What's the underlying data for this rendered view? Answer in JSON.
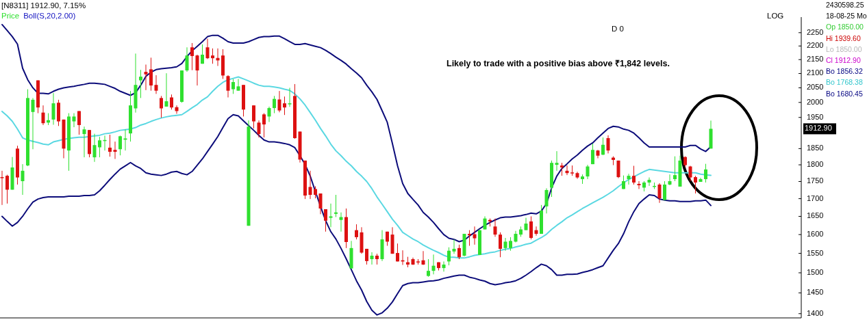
{
  "chart_data": {
    "type": "candlestick",
    "title": "[N8311] 1912.90, 7.15%",
    "subtitle": "Boll(S,20,2.00)",
    "log": true,
    "ylim": [
      1390,
      2310
    ],
    "yticks": [
      1400,
      1450,
      1500,
      1550,
      1600,
      1650,
      1700,
      1750,
      1800,
      1850,
      1950,
      2000,
      2050,
      2100,
      2150,
      2200,
      2250
    ],
    "categories": [
      null,
      null,
      null,
      null,
      null,
      null,
      null,
      null,
      null,
      null,
      null,
      null,
      null,
      null,
      null,
      null,
      null,
      null,
      null,
      null,
      null,
      null,
      null,
      null,
      null,
      null,
      null,
      null,
      null,
      null,
      null,
      null,
      null,
      null,
      null,
      null,
      null,
      null,
      null,
      null,
      null,
      null,
      null,
      null,
      null,
      null,
      null,
      null,
      null,
      null,
      null,
      null,
      null,
      null,
      null,
      null,
      null,
      null,
      null,
      null,
      null,
      null,
      null,
      null,
      null,
      null,
      null,
      null,
      null,
      null,
      null,
      null,
      null,
      null,
      null,
      null,
      null,
      null,
      null,
      null,
      null,
      null,
      null,
      null,
      null,
      null,
      null,
      null,
      null,
      null,
      null,
      null,
      null,
      null,
      null,
      null,
      null,
      null,
      null,
      null,
      null,
      null,
      null,
      null,
      null,
      null,
      null,
      null,
      null,
      null,
      null,
      null,
      null,
      null,
      null,
      null,
      null,
      null,
      null,
      null,
      null,
      null,
      null,
      null,
      null,
      null,
      null,
      null,
      null,
      null,
      null,
      null,
      null,
      null,
      null,
      null,
      null,
      null,
      null
    ],
    "series": [
      {
        "type": "line",
        "color": "#0c0c7a",
        "values": [
          2281,
          2258,
          2235,
          2207,
          2119,
          2078,
          2050,
          2031,
          2031,
          2029,
          2038,
          2045,
          2050,
          2053,
          2055,
          2059,
          2062,
          2066,
          2066,
          2064,
          2062,
          2055,
          2048,
          2038,
          2031,
          2024,
          2033,
          2059,
          2090,
          2105,
          2114,
          2117,
          2119,
          2121,
          2124,
          2136,
          2161,
          2182,
          2199,
          2216,
          2235,
          2240,
          2240,
          2229,
          2216,
          2211,
          2211,
          2211,
          2216,
          2224,
          2232,
          2235,
          2235,
          2237,
          2237,
          2227,
          2216,
          2206,
          2206,
          2209,
          2204,
          2199,
          2194,
          2184,
          2172,
          2159,
          2147,
          2134,
          2117,
          2102,
          2085,
          2059,
          2036,
          2010,
          1972,
          1934,
          1866,
          1797,
          1744,
          1715,
          1698,
          1682,
          1661,
          1648,
          1633,
          1616,
          1600,
          1590,
          1587,
          1581,
          1585,
          1596,
          1606,
          1616,
          1625,
          1633,
          1640,
          1646,
          1648,
          1648,
          1650,
          1652,
          1655,
          1659,
          1657,
          1665,
          1686,
          1731,
          1766,
          1789,
          1803,
          1818,
          1830,
          1845,
          1858,
          1868,
          1884,
          1899,
          1914,
          1921,
          1919,
          1912,
          1908,
          1899,
          1884,
          1868,
          1855,
          1855,
          1855,
          1855,
          1855,
          1855,
          1855,
          1855,
          1860,
          1860,
          1849,
          1841,
          1856.32
        ]
      },
      {
        "type": "line",
        "color": "#5ad8e2",
        "values": [
          1970,
          1955,
          1937,
          1912,
          1884,
          1877,
          1873,
          1869,
          1864,
          1862,
          1871,
          1875,
          1879,
          1882,
          1884,
          1886,
          1886,
          1888,
          1890,
          1892,
          1897,
          1899,
          1903,
          1908,
          1910,
          1912,
          1917,
          1925,
          1930,
          1937,
          1943,
          1948,
          1952,
          1955,
          1957,
          1959,
          1970,
          1982,
          1993,
          2008,
          2019,
          2038,
          2055,
          2069,
          2078,
          2083,
          2088,
          2081,
          2074,
          2066,
          2059,
          2055,
          2055,
          2053,
          2050,
          2045,
          2041,
          2029,
          2012,
          1991,
          1966,
          1941,
          1914,
          1890,
          1864,
          1843,
          1828,
          1811,
          1797,
          1780,
          1766,
          1750,
          1729,
          1705,
          1684,
          1663,
          1642,
          1625,
          1606,
          1597,
          1588,
          1581,
          1572,
          1565,
          1558,
          1552,
          1545,
          1540,
          1540,
          1538,
          1538,
          1541,
          1545,
          1547,
          1549,
          1552,
          1554,
          1558,
          1561,
          1563,
          1567,
          1570,
          1574,
          1577,
          1585,
          1592,
          1601,
          1614,
          1625,
          1635,
          1646,
          1654,
          1663,
          1672,
          1680,
          1688,
          1696,
          1704,
          1713,
          1723,
          1735,
          1746,
          1756,
          1764,
          1772,
          1780,
          1786,
          1784,
          1782,
          1780,
          1778,
          1776,
          1776,
          1776,
          1776,
          1776,
          1772,
          1770,
          1768.38
        ]
      },
      {
        "type": "line",
        "color": "#0c0c7a",
        "values": [
          1650,
          1636,
          1623,
          1633,
          1650,
          1671,
          1690,
          1699,
          1703,
          1705,
          1705,
          1705,
          1705,
          1707,
          1707,
          1707,
          1709,
          1709,
          1711,
          1723,
          1739,
          1756,
          1772,
          1787,
          1797,
          1807,
          1797,
          1789,
          1776,
          1772,
          1770,
          1768,
          1772,
          1778,
          1780,
          1774,
          1770,
          1780,
          1799,
          1818,
          1841,
          1864,
          1888,
          1917,
          1946,
          1959,
          1955,
          1939,
          1923,
          1908,
          1892,
          1877,
          1871,
          1871,
          1869,
          1866,
          1862,
          1853,
          1828,
          1801,
          1766,
          1721,
          1678,
          1638,
          1608,
          1588,
          1563,
          1536,
          1508,
          1480,
          1457,
          1429,
          1408,
          1397,
          1402,
          1413,
          1428,
          1448,
          1468,
          1473,
          1475,
          1475,
          1477,
          1479,
          1480,
          1482,
          1486,
          1489,
          1492,
          1494,
          1494,
          1489,
          1486,
          1482,
          1479,
          1473,
          1470,
          1472,
          1475,
          1477,
          1480,
          1486,
          1494,
          1503,
          1513,
          1522,
          1518,
          1508,
          1494,
          1494,
          1496,
          1496,
          1497,
          1501,
          1504,
          1508,
          1513,
          1518,
          1538,
          1558,
          1576,
          1602,
          1635,
          1663,
          1686,
          1699,
          1711,
          1709,
          1699,
          1696,
          1694,
          1694,
          1692,
          1692,
          1692,
          1694,
          1694,
          1696,
          1680.45
        ]
      },
      {
        "name": "Price",
        "color": "#2fe02f",
        "colors": [
          "#dd1111",
          "#dd1111",
          "#2fe02f",
          "#dd1111",
          "#2fe02f",
          "#2fe02f",
          "#2fe02f",
          "#dd1111",
          "#dd1111",
          "#2fe02f",
          "#2fe02f",
          "#dd1111",
          "#dd1111",
          "#2fe02f",
          "#2fe02f",
          "#dd1111",
          "#2fe02f",
          "#dd1111",
          "#2fe02f",
          "#2fe02f",
          "#2fe02f",
          "#dd1111",
          "#dd1111",
          "#2fe02f",
          "#2fe02f",
          "#2fe02f",
          "#2fe02f",
          "#2fe02f",
          "#dd1111",
          "#dd1111",
          "#dd1111",
          "#dd1111",
          "#2fe02f",
          "#dd1111",
          "#dd1111",
          "#2fe02f",
          "#2fe02f",
          "#dd1111",
          "#dd1111",
          "#2fe02f",
          "#dd1111",
          "#dd1111",
          "#dd1111",
          "#dd1111",
          "#dd1111",
          "#2fe02f",
          "#2fe02f",
          "#dd1111",
          "#2fe02f",
          "#dd1111",
          "#dd1111",
          "#dd1111",
          "#2fe02f",
          "#2fe02f",
          "#dd1111",
          "#dd1111",
          "#2fe02f",
          "#dd1111",
          "#dd1111",
          "#dd1111",
          "#dd1111",
          "#dd1111",
          "#dd1111",
          "#dd1111",
          "#2fe02f",
          "#2fe02f",
          "#2fe02f",
          "#dd1111",
          "#2fe02f",
          "#dd1111",
          "#dd1111",
          "#dd1111",
          "#2fe02f",
          "#dd1111",
          "#2fe02f",
          "#dd1111",
          "#dd1111",
          "#dd1111",
          "#dd1111",
          "#dd1111",
          "#dd1111",
          "#dd1111",
          "#dd1111",
          "#2fe02f",
          "#2fe02f",
          "#dd1111",
          "#2fe02f",
          "#2fe02f",
          "#2fe02f",
          "#dd1111",
          "#2fe02f",
          "#dd1111",
          "#dd1111",
          "#2fe02f",
          "#2fe02f",
          "#dd1111",
          "#dd1111",
          "#dd1111",
          "#2fe02f",
          "#2fe02f",
          "#2fe02f",
          "#2fe02f",
          "#2fe02f",
          "#dd1111",
          "#dd1111",
          "#2fe02f",
          "#2fe02f",
          "#2fe02f",
          "#2fe02f",
          "#dd1111",
          "#dd1111",
          "#dd1111",
          "#dd1111",
          "#2fe02f",
          "#2fe02f",
          "#2fe02f",
          "#dd1111",
          "#2fe02f",
          "#dd1111",
          "#dd1111",
          "#dd1111",
          "#2fe02f",
          "#2fe02f",
          "#dd1111",
          "#dd1111",
          "#2fe02f",
          "#2fe02f",
          "#2fe02f",
          "#dd1111",
          "#2fe02f",
          "#2fe02f",
          "#2fe02f",
          "#2fe02f",
          "#dd1111",
          "#dd1111",
          "#dd1111",
          "#2fe02f",
          "#2fe02f",
          "#2fe02f"
        ],
        "ohlc": [
          [
            1763,
            1782,
            1682,
            1762
          ],
          [
            1767,
            1770,
            1686,
            1726
          ],
          [
            1726,
            1824,
            1726,
            1792
          ],
          [
            1850,
            1859,
            1741,
            1762
          ],
          [
            1751,
            1802,
            1711,
            1782
          ],
          [
            1798,
            2045,
            1796,
            2015
          ],
          [
            1968,
            2015,
            1848,
            2009
          ],
          [
            2076,
            2076,
            1964,
            1983
          ],
          [
            1966,
            1990,
            1925,
            1931
          ],
          [
            1933,
            1964,
            1925,
            1941
          ],
          [
            1943,
            2032,
            1926,
            1997
          ],
          [
            1999,
            2009,
            1922,
            1937
          ],
          [
            1943,
            1943,
            1820,
            1850
          ],
          [
            1844,
            1964,
            1782,
            1953
          ],
          [
            1937,
            1964,
            1918,
            1953
          ],
          [
            1971,
            1971,
            1894,
            1925
          ],
          [
            1896,
            1920,
            1823,
            1911
          ],
          [
            1909,
            1909,
            1823,
            1833
          ],
          [
            1823,
            1897,
            1809,
            1861
          ],
          [
            1854,
            1887,
            1823,
            1876
          ],
          [
            1874,
            1891,
            1844,
            1877
          ],
          [
            1853,
            1894,
            1825,
            1840
          ],
          [
            1846,
            1872,
            1818,
            1840
          ],
          [
            1848,
            1891,
            1829,
            1889
          ],
          [
            1878,
            1911,
            1844,
            1882
          ],
          [
            1898,
            2039,
            1872,
            1990
          ],
          [
            1980,
            2172,
            1966,
            2060
          ],
          [
            2076,
            2113,
            2015,
            2089
          ],
          [
            2106,
            2132,
            2042,
            2097
          ],
          [
            2115,
            2157,
            2040,
            2058
          ],
          [
            2060,
            2094,
            2029,
            2040
          ],
          [
            2015,
            2022,
            1949,
            1980
          ],
          [
            1986,
            2101,
            1986,
            2004
          ],
          [
            2017,
            2027,
            1976,
            1983
          ],
          [
            1984,
            1990,
            1962,
            1971
          ],
          [
            2002,
            2111,
            1999,
            2111
          ],
          [
            2111,
            2195,
            2106,
            2165
          ],
          [
            2195,
            2211,
            2112,
            2163
          ],
          [
            2165,
            2168,
            2058,
            2111
          ],
          [
            2135,
            2206,
            2135,
            2168
          ],
          [
            2195,
            2227,
            2152,
            2155
          ],
          [
            2165,
            2191,
            2135,
            2155
          ],
          [
            2156,
            2191,
            2127,
            2147
          ],
          [
            2165,
            2188,
            2081,
            2093
          ],
          [
            2091,
            2094,
            2017,
            2040
          ],
          [
            2045,
            2081,
            2029,
            2070
          ],
          [
            2040,
            2081,
            2040,
            2055
          ],
          [
            2060,
            2060,
            1953,
            1976
          ],
          [
            1624,
            1940,
            1624,
            1920
          ],
          [
            1990,
            1990,
            1914,
            1937
          ],
          [
            1933,
            1940,
            1885,
            1896
          ],
          [
            1960,
            1964,
            1885,
            1927
          ],
          [
            1953,
            1986,
            1935,
            1981
          ],
          [
            1981,
            2022,
            1964,
            2012
          ],
          [
            2010,
            2039,
            1967,
            1973
          ],
          [
            1997,
            2020,
            1958,
            1983
          ],
          [
            1994,
            2050,
            1985,
            1997
          ],
          [
            2022,
            2063,
            1881,
            1883
          ],
          [
            1904,
            1904,
            1807,
            1816
          ],
          [
            1813,
            1813,
            1699,
            1709
          ],
          [
            1734,
            1782,
            1699,
            1711
          ],
          [
            1728,
            1736,
            1701,
            1711
          ],
          [
            1715,
            1715,
            1656,
            1672
          ],
          [
            1670,
            1670,
            1608,
            1638
          ],
          [
            1646,
            1686,
            1620,
            1650
          ],
          [
            1657,
            1711,
            1648,
            1661
          ],
          [
            1640,
            1661,
            1608,
            1648
          ],
          [
            1648,
            1672,
            1564,
            1580
          ],
          [
            1511,
            1583,
            1511,
            1564
          ],
          [
            1612,
            1628,
            1587,
            1593
          ],
          [
            1606,
            1620,
            1549,
            1552
          ],
          [
            1562,
            1562,
            1521,
            1530
          ],
          [
            1535,
            1553,
            1521,
            1544
          ],
          [
            1544,
            1549,
            1521,
            1535
          ],
          [
            1535,
            1612,
            1530,
            1587
          ],
          [
            1608,
            1608,
            1570,
            1581
          ],
          [
            1600,
            1620,
            1549,
            1549
          ],
          [
            1551,
            1576,
            1529,
            1529
          ],
          [
            1532,
            1558,
            1520,
            1529
          ],
          [
            1527,
            1541,
            1514,
            1521
          ],
          [
            1535,
            1539,
            1520,
            1521
          ],
          [
            1529,
            1535,
            1521,
            1527
          ],
          [
            1532,
            1556,
            1520,
            1521
          ],
          [
            1492,
            1535,
            1490,
            1505
          ],
          [
            1505,
            1547,
            1496,
            1518
          ],
          [
            1527,
            1527,
            1506,
            1512
          ],
          [
            1512,
            1529,
            1503,
            1521
          ],
          [
            1529,
            1566,
            1519,
            1557
          ],
          [
            1555,
            1587,
            1549,
            1562
          ],
          [
            1564,
            1573,
            1535,
            1540
          ],
          [
            1544,
            1602,
            1542,
            1602
          ],
          [
            1602,
            1612,
            1570,
            1598
          ],
          [
            1601,
            1622,
            1573,
            1590
          ],
          [
            1546,
            1612,
            1546,
            1612
          ],
          [
            1614,
            1650,
            1614,
            1644
          ],
          [
            1640,
            1644,
            1622,
            1636
          ],
          [
            1622,
            1644,
            1594,
            1600
          ],
          [
            1600,
            1606,
            1540,
            1562
          ],
          [
            1564,
            1591,
            1557,
            1581
          ],
          [
            1564,
            1593,
            1557,
            1583
          ],
          [
            1581,
            1610,
            1579,
            1602
          ],
          [
            1600,
            1622,
            1594,
            1614
          ],
          [
            1612,
            1646,
            1612,
            1630
          ],
          [
            1636,
            1650,
            1587,
            1591
          ],
          [
            1612,
            1622,
            1597,
            1602
          ],
          [
            1602,
            1682,
            1602,
            1666
          ],
          [
            1678,
            1730,
            1658,
            1725
          ],
          [
            1732,
            1813,
            1705,
            1806
          ],
          [
            1800,
            1842,
            1782,
            1806
          ],
          [
            1798,
            1806,
            1767,
            1792
          ],
          [
            1782,
            1798,
            1769,
            1775
          ],
          [
            1777,
            1798,
            1767,
            1775
          ],
          [
            1775,
            1779,
            1758,
            1762
          ],
          [
            1757,
            1771,
            1743,
            1765
          ],
          [
            1765,
            1800,
            1757,
            1795
          ],
          [
            1802,
            1866,
            1802,
            1846
          ],
          [
            1844,
            1846,
            1820,
            1828
          ],
          [
            1831,
            1885,
            1830,
            1862
          ],
          [
            1883,
            1892,
            1835,
            1844
          ],
          [
            1822,
            1826,
            1799,
            1815
          ],
          [
            1813,
            1813,
            1760,
            1763
          ],
          [
            1728,
            1768,
            1728,
            1751
          ],
          [
            1757,
            1773,
            1741,
            1767
          ],
          [
            1767,
            1797,
            1741,
            1747
          ],
          [
            1743,
            1751,
            1728,
            1739
          ],
          [
            1732,
            1751,
            1721,
            1747
          ],
          [
            1747,
            1762,
            1737,
            1755
          ],
          [
            1735,
            1747,
            1728,
            1737
          ],
          [
            1741,
            1745,
            1688,
            1701
          ],
          [
            1696,
            1751,
            1696,
            1741
          ],
          [
            1741,
            1771,
            1739,
            1751
          ],
          [
            1757,
            1826,
            1751,
            1769
          ],
          [
            1735,
            1828,
            1735,
            1813
          ],
          [
            1824,
            1826,
            1793,
            1799
          ],
          [
            1795,
            1797,
            1751,
            1762
          ],
          [
            1763,
            1767,
            1715,
            1747
          ],
          [
            1749,
            1761,
            1749,
            1757
          ],
          [
            1757,
            1803,
            1747,
            1786
          ],
          [
            1850,
            1939.6,
            1850,
            1912.9
          ]
        ]
      }
    ],
    "annotations": [
      "Likely to trade with a positive bias above ₹1,842 levels.",
      "D 0",
      "LOG",
      "1912.90",
      "2430598.25",
      "18-08-25 Mo",
      "Op 1850.00",
      "Hi 1939.60",
      "Lo 1850.00",
      "Cl 1912.90",
      "Bo 1856.32",
      "Bo 1768.38",
      "Bo 1680.45"
    ]
  }
}
